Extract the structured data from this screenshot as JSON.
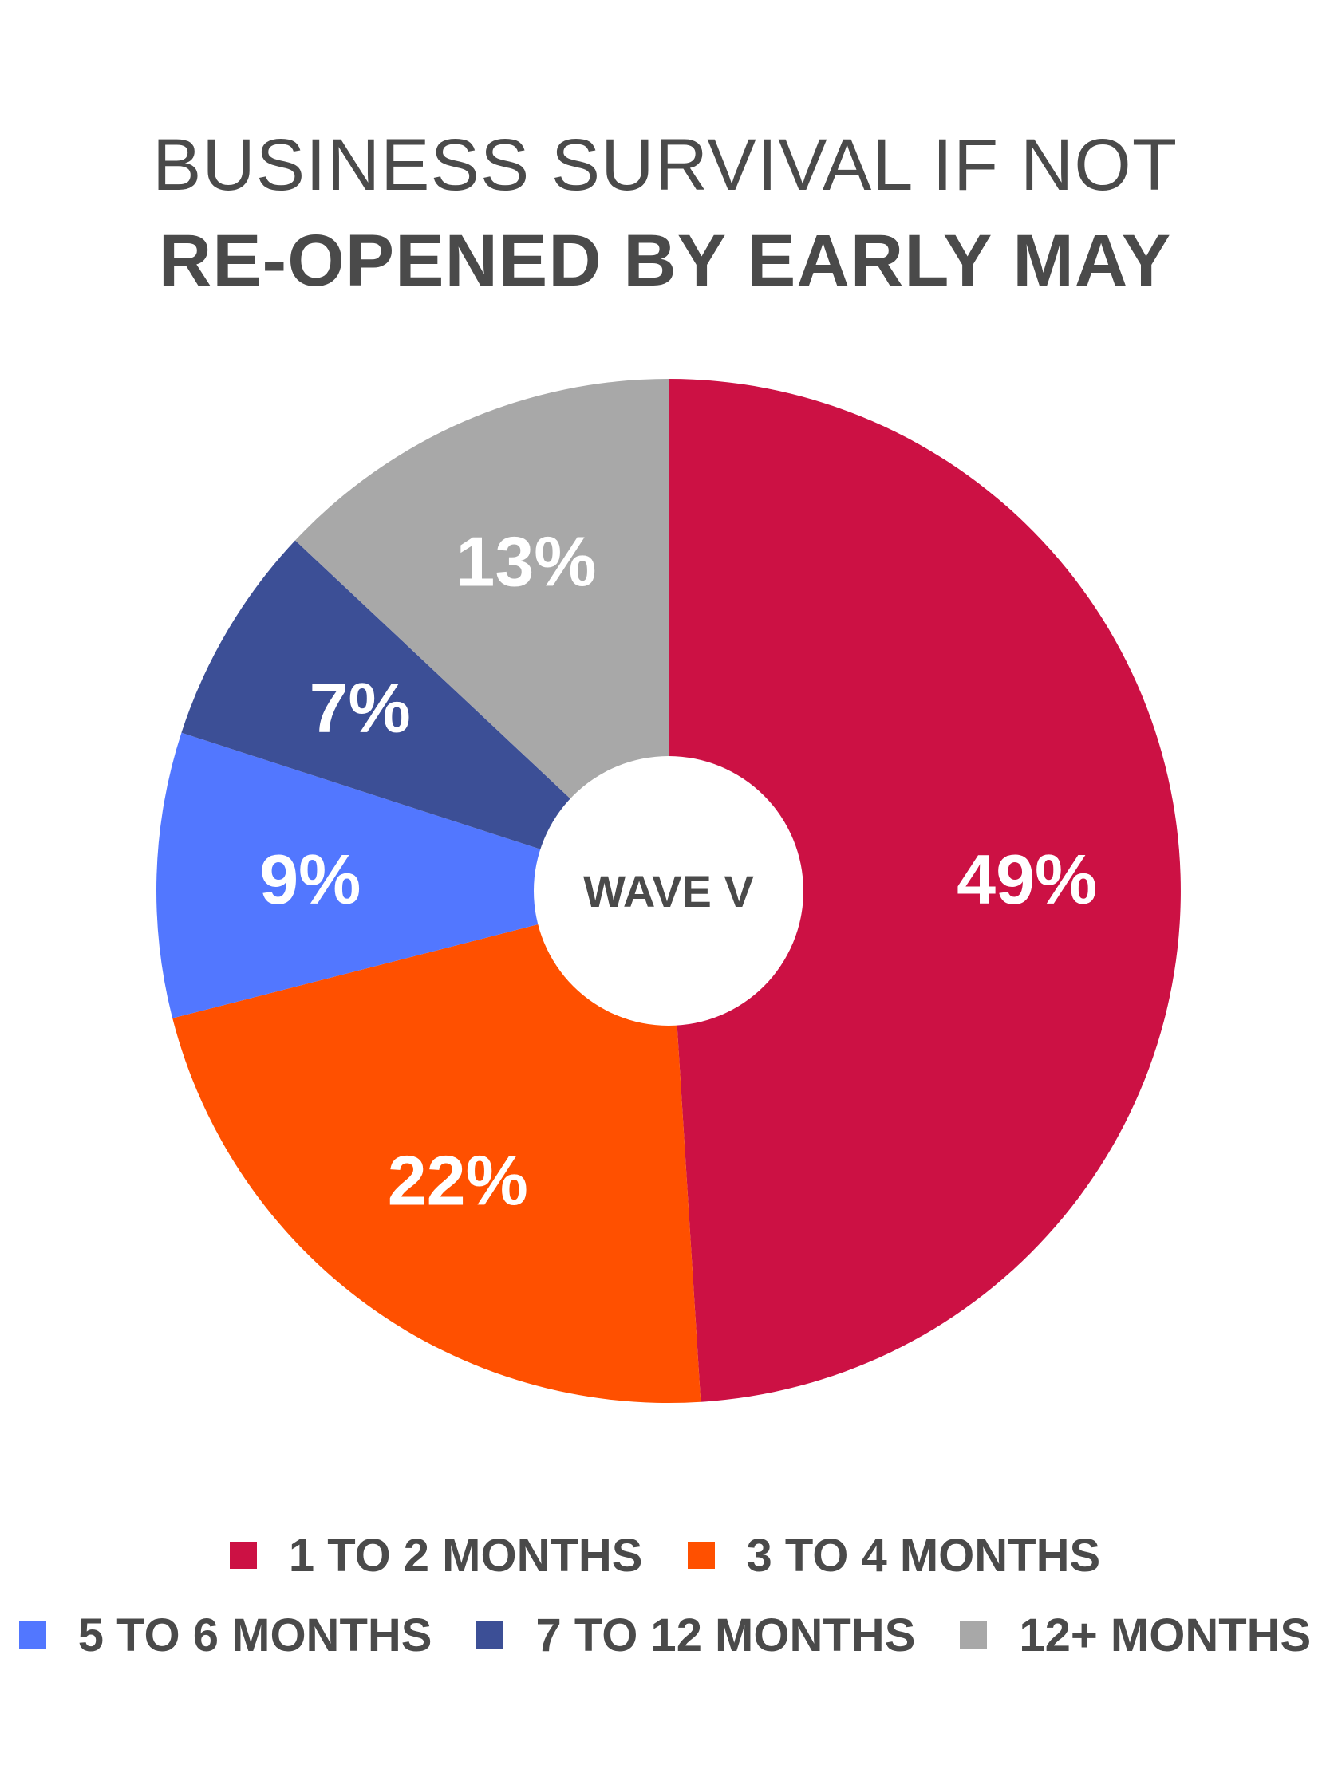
{
  "chart_data": {
    "type": "pie",
    "title_line1": "BUSINESS SURVIVAL IF NOT",
    "title_line2": "RE-OPENED BY EARLY MAY",
    "center_label": "WAVE V",
    "slices": [
      {
        "name": "1 TO 2 MONTHS",
        "value": 49,
        "label": "49%",
        "color": "#cc1144"
      },
      {
        "name": "3 TO 4 MONTHS",
        "value": 22,
        "label": "22%",
        "color": "#ff5000"
      },
      {
        "name": "5 TO 6 MONTHS",
        "value": 9,
        "label": "9%",
        "color": "#5277ff"
      },
      {
        "name": "7 TO 12 MONTHS",
        "value": 7,
        "label": "7%",
        "color": "#3c4f96"
      },
      {
        "name": "12+ MONTHS",
        "value": 13,
        "label": "13%",
        "color": "#a8a8a8"
      }
    ],
    "legend_placement": "bottom"
  }
}
